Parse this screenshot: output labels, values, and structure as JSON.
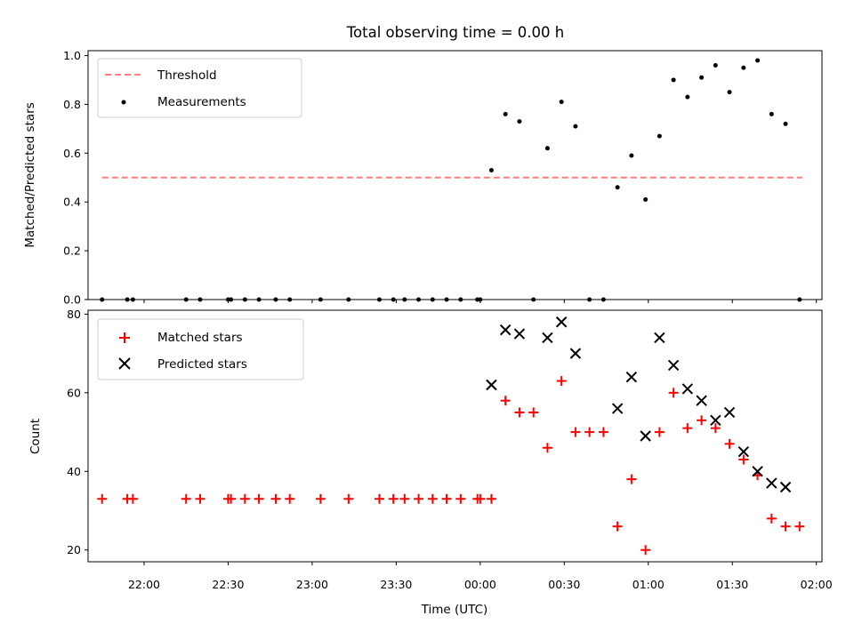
{
  "chart_data": [
    {
      "type": "scatter",
      "title": "Total observing time = 0.00 h",
      "xlabel": "",
      "ylabel": "Matched/Predicted stars",
      "xlim": [
        "21:40",
        "02:02"
      ],
      "ylim": [
        0,
        1.02
      ],
      "yticks": [
        "0.0",
        "0.2",
        "0.4",
        "0.6",
        "0.8",
        "1.0"
      ],
      "grid": false,
      "legend": "top-left",
      "threshold": {
        "name": "Threshold",
        "value": 0.5,
        "x_start": "21:45",
        "x_end": "01:55",
        "color": "#ff7f7f"
      },
      "series": [
        {
          "name": "Measurements",
          "color": "#000000",
          "marker": "dot",
          "x": [
            "21:45",
            "21:54",
            "21:56",
            "22:15",
            "22:20",
            "22:30",
            "22:31",
            "22:36",
            "22:41",
            "22:47",
            "22:52",
            "23:03",
            "23:13",
            "23:24",
            "23:29",
            "23:33",
            "23:38",
            "23:43",
            "23:48",
            "23:53",
            "23:59",
            "24:00",
            "24:04",
            "24:09",
            "24:14",
            "24:19",
            "24:24",
            "24:29",
            "24:34",
            "24:39",
            "24:44",
            "24:49",
            "24:54",
            "24:59",
            "25:04",
            "25:09",
            "25:14",
            "25:19",
            "25:24",
            "25:29",
            "25:34",
            "25:39",
            "25:44",
            "25:49",
            "25:54"
          ],
          "y": [
            0,
            0,
            0,
            0,
            0,
            0,
            0,
            0,
            0,
            0,
            0,
            0,
            0,
            0,
            0,
            0,
            0,
            0,
            0,
            0,
            0,
            0,
            0.53,
            0.76,
            0.73,
            0,
            0.62,
            0.81,
            0.71,
            0,
            0,
            0.46,
            0.59,
            0.41,
            0.67,
            0.9,
            0.83,
            0.91,
            0.96,
            0.85,
            0.95,
            0.98,
            0.76,
            0.72,
            0
          ]
        }
      ]
    },
    {
      "type": "scatter",
      "title": "",
      "xlabel": "Time (UTC)",
      "ylabel": "Count",
      "xlim": [
        "21:40",
        "02:02"
      ],
      "ylim": [
        17,
        81
      ],
      "yticks": [
        "20",
        "40",
        "60",
        "80"
      ],
      "xticks": [
        "22:00",
        "22:30",
        "23:00",
        "23:30",
        "00:00",
        "00:30",
        "01:00",
        "01:30",
        "02:00"
      ],
      "grid": false,
      "legend": "top-left",
      "series": [
        {
          "name": "Matched stars",
          "color": "#ff0000",
          "marker": "plus",
          "x": [
            "21:45",
            "21:54",
            "21:56",
            "22:15",
            "22:20",
            "22:30",
            "22:31",
            "22:36",
            "22:41",
            "22:47",
            "22:52",
            "23:03",
            "23:13",
            "23:24",
            "23:29",
            "23:33",
            "23:38",
            "23:43",
            "23:48",
            "23:53",
            "23:59",
            "24:00",
            "24:04",
            "24:09",
            "24:14",
            "24:19",
            "24:24",
            "24:29",
            "24:34",
            "24:39",
            "24:44",
            "24:49",
            "24:54",
            "24:59",
            "25:04",
            "25:09",
            "25:14",
            "25:19",
            "25:24",
            "25:29",
            "25:34",
            "25:39",
            "25:44",
            "25:49",
            "25:54"
          ],
          "y": [
            33,
            33,
            33,
            33,
            33,
            33,
            33,
            33,
            33,
            33,
            33,
            33,
            33,
            33,
            33,
            33,
            33,
            33,
            33,
            33,
            33,
            33,
            33,
            58,
            55,
            55,
            46,
            63,
            50,
            50,
            50,
            26,
            38,
            20,
            50,
            60,
            51,
            53,
            51,
            47,
            43,
            39,
            28,
            26,
            26
          ]
        },
        {
          "name": "Predicted stars",
          "color": "#000000",
          "marker": "x",
          "x": [
            "24:04",
            "24:09",
            "24:14",
            "24:24",
            "24:29",
            "24:34",
            "24:49",
            "24:54",
            "24:59",
            "25:04",
            "25:09",
            "25:14",
            "25:19",
            "25:24",
            "25:29",
            "25:34",
            "25:39",
            "25:44",
            "25:49"
          ],
          "y": [
            62,
            76,
            75,
            74,
            78,
            70,
            56,
            64,
            49,
            74,
            67,
            61,
            58,
            53,
            55,
            45,
            40,
            37,
            36
          ]
        }
      ]
    }
  ]
}
